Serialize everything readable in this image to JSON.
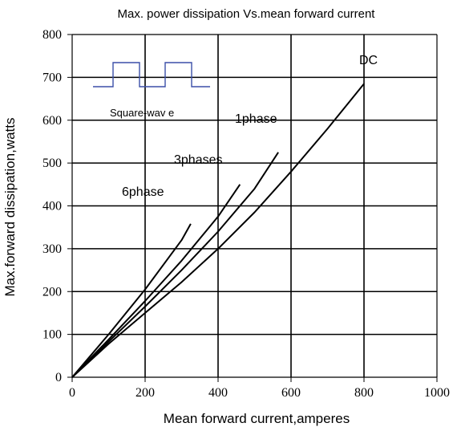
{
  "chart_data": {
    "type": "line",
    "title": "Max. power dissipation Vs.mean forward current",
    "xlabel": "Mean forward current,amperes",
    "ylabel": "Max.forward dissipation,watts",
    "xlim": [
      0,
      1000
    ],
    "ylim": [
      0,
      800
    ],
    "x_ticks": [
      "0",
      "200",
      "400",
      "600",
      "800",
      "1000"
    ],
    "y_ticks": [
      "0",
      "100",
      "200",
      "300",
      "400",
      "500",
      "600",
      "700",
      "800"
    ],
    "grid": true,
    "series": [
      {
        "name": "DC",
        "x": [
          0,
          100,
          200,
          300,
          400,
          500,
          600,
          700,
          800
        ],
        "y": [
          0,
          78,
          150,
          222,
          300,
          385,
          480,
          580,
          685
        ],
        "color": "#000000"
      },
      {
        "name": "1phase",
        "x": [
          0,
          100,
          200,
          300,
          400,
          500,
          565
        ],
        "y": [
          0,
          83,
          165,
          250,
          340,
          440,
          525
        ],
        "color": "#000000"
      },
      {
        "name": "3phases",
        "x": [
          0,
          100,
          200,
          300,
          400,
          460
        ],
        "y": [
          0,
          88,
          178,
          272,
          375,
          450
        ],
        "color": "#000000"
      },
      {
        "name": "6phase",
        "x": [
          0,
          100,
          200,
          300,
          325
        ],
        "y": [
          0,
          100,
          205,
          320,
          358
        ],
        "color": "#000000"
      }
    ],
    "inset_caption": "Square-wav e",
    "inset_icon": "square-wave-icon",
    "inset_color": "#3b4fa8"
  }
}
